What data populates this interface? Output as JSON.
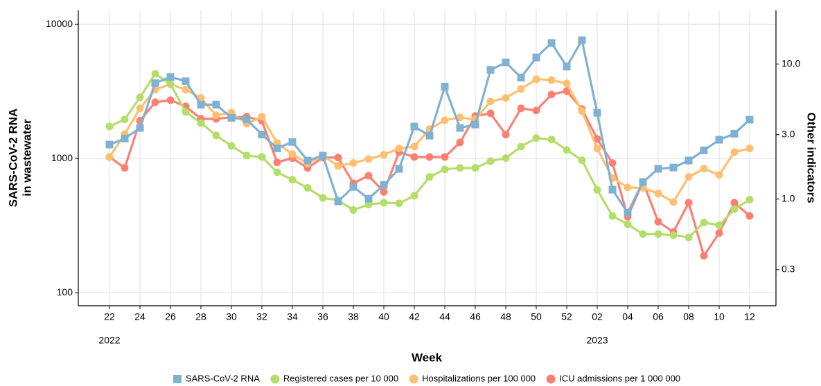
{
  "chart_data": {
    "type": "line",
    "ylabel": [
      "SARS-CoV-2 RNA",
      "in wastewater"
    ],
    "y2label": "Other indicators",
    "xlabel": "Week",
    "year_labels": [
      {
        "label": "2022",
        "at": "22"
      },
      {
        "label": "2023",
        "at": "02"
      }
    ],
    "categories": [
      "22",
      null,
      "24",
      null,
      "26",
      null,
      "28",
      null,
      "30",
      null,
      "32",
      null,
      "34",
      null,
      "36",
      null,
      "38",
      null,
      "40",
      null,
      "42",
      null,
      "44",
      null,
      "46",
      null,
      "48",
      null,
      "50",
      null,
      "52",
      null,
      "02",
      null,
      "04",
      null,
      "06",
      null,
      "08",
      null,
      "10",
      null,
      "12"
    ],
    "ylog": true,
    "y2log": true,
    "ylim": [
      80,
      12700
    ],
    "yticks": [
      100,
      1000,
      10000
    ],
    "y2lim": [
      0.162,
      25
    ],
    "y2ticks": [
      0.3,
      {
        "value": 1,
        "label": "1.0"
      },
      {
        "value": 3,
        "label": "3.0"
      },
      {
        "value": 10,
        "label": "10.0"
      }
    ],
    "grid": true,
    "legend": "bottom",
    "series": [
      {
        "name": "SARS-CoV-2 RNA",
        "color": "#80b1d3",
        "marker": "square",
        "axis": "y",
        "values": [
          1270,
          1410,
          1690,
          3650,
          4050,
          3770,
          2520,
          2520,
          2010,
          1960,
          1510,
          1190,
          1330,
          966,
          1050,
          479,
          615,
          502,
          636,
          838,
          1730,
          1480,
          3430,
          1690,
          1790,
          4570,
          5200,
          4010,
          5660,
          7260,
          4850,
          7610,
          2190,
          586,
          396,
          668,
          838,
          857,
          966,
          1150,
          1380,
          1530,
          1950
        ]
      },
      {
        "name": "Registered cases per 10 000",
        "color": "#b3de69",
        "marker": "circle",
        "axis": "y2",
        "values": [
          3.45,
          3.89,
          5.67,
          8.48,
          7.1,
          4.43,
          3.66,
          2.96,
          2.48,
          2.1,
          2.05,
          1.58,
          1.39,
          1.21,
          1.02,
          0.98,
          0.83,
          0.91,
          0.94,
          0.93,
          1.06,
          1.46,
          1.66,
          1.7,
          1.7,
          1.91,
          2.01,
          2.45,
          2.83,
          2.76,
          2.31,
          1.94,
          1.17,
          0.75,
          0.65,
          0.55,
          0.55,
          0.54,
          0.52,
          0.67,
          0.64,
          0.84,
          0.99
        ]
      },
      {
        "name": "Hospitalizations per 100 000",
        "color": "#fdc071",
        "marker": "circle",
        "axis": "y2",
        "values": [
          2.05,
          3.03,
          4.7,
          6.46,
          7.1,
          6.46,
          5.61,
          4.17,
          4.38,
          3.62,
          4.08,
          2.6,
          2.15,
          1.83,
          2.1,
          1.76,
          1.85,
          1.98,
          2.13,
          2.37,
          2.45,
          3.3,
          3.84,
          4.03,
          3.89,
          5.28,
          5.61,
          6.54,
          7.71,
          7.62,
          7.18,
          4.48,
          2.37,
          1.43,
          1.22,
          1.21,
          1.1,
          0.95,
          1.46,
          1.68,
          1.51,
          2.23,
          2.37
        ]
      },
      {
        "name": "ICU admissions per 1 000 000",
        "color": "#fb8072",
        "marker": "circle",
        "axis": "y2",
        "values": [
          2.05,
          1.7,
          3.8,
          5.22,
          5.41,
          4.86,
          3.93,
          3.93,
          4.03,
          4.08,
          3.8,
          1.87,
          2.01,
          1.7,
          2.03,
          2.03,
          1.31,
          1.49,
          1.13,
          2.23,
          2.05,
          2.05,
          2.05,
          2.63,
          4.12,
          4.32,
          3.0,
          4.7,
          4.53,
          5.95,
          6.31,
          4.64,
          2.79,
          1.85,
          0.74,
          1.34,
          0.68,
          0.57,
          0.94,
          0.38,
          0.56,
          0.94,
          0.75
        ]
      }
    ]
  }
}
